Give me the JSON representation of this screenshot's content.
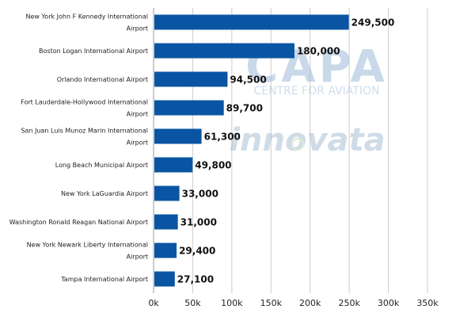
{
  "chart_data": {
    "type": "bar",
    "orientation": "horizontal",
    "categories": [
      "New York John F Kennedy International Airport",
      "Boston Logan International Airport",
      "Orlando International Airport",
      "Fort Lauderdale-Hollywood International Airport",
      "San Juan Luis Munoz Marin International Airport",
      "Long Beach Municipal Airport",
      "New York LaGuardia Airport",
      "Washington Ronald Reagan National Airport",
      "New York Newark Liberty International Airport",
      "Tampa International Airport"
    ],
    "category_lines": [
      [
        "New York John F Kennedy International",
        "Airport"
      ],
      [
        "Boston Logan International Airport"
      ],
      [
        "Orlando International Airport"
      ],
      [
        "Fort Lauderdale-Hollywood International",
        "Airport"
      ],
      [
        "San Juan Luis Munoz Marin International",
        "Airport"
      ],
      [
        "Long Beach Municipal Airport"
      ],
      [
        "New York LaGuardia Airport"
      ],
      [
        "Washington Ronald Reagan National Airport"
      ],
      [
        "New York Newark Liberty International",
        "Airport"
      ],
      [
        "Tampa International Airport"
      ]
    ],
    "values": [
      249500,
      180000,
      94500,
      89700,
      61300,
      49800,
      33000,
      31000,
      29400,
      27100
    ],
    "value_labels": [
      "249,500",
      "180,000",
      "94,500",
      "89,700",
      "61,300",
      "49,800",
      "33,000",
      "31,000",
      "29,400",
      "27,100"
    ],
    "xlim": [
      0,
      350000
    ],
    "ticks": [
      0,
      50000,
      100000,
      150000,
      200000,
      250000,
      300000,
      350000
    ],
    "tick_labels": [
      "0k",
      "50k",
      "100k",
      "150k",
      "200k",
      "250k",
      "300k",
      "350k"
    ],
    "title": "",
    "xlabel": "",
    "ylabel": "",
    "grid": true,
    "legend": "none",
    "bar_color": "#0a55a3"
  },
  "watermarks": {
    "capa_logo": "CAPA",
    "capa_tagline": "CENTRE FOR AVIATION",
    "innovata": "innovata"
  }
}
